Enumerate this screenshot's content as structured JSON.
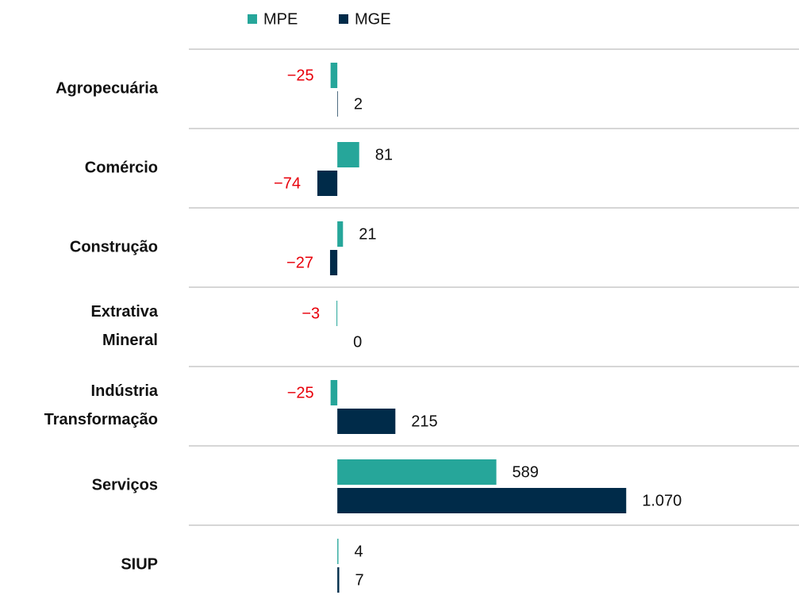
{
  "chart_data": {
    "type": "barh",
    "categories": [
      "Agropecuária",
      "Comércio",
      "Construção",
      "Extrativa Mineral",
      "Indústria Transformação",
      "Serviços",
      "SIUP"
    ],
    "series": [
      {
        "name": "MPE",
        "color": "#26a69a",
        "values": [
          -25,
          81,
          21,
          -3,
          -25,
          589,
          4
        ],
        "value_labels": [
          "−25",
          "81",
          "21",
          "−3",
          "−25",
          "589",
          "4"
        ]
      },
      {
        "name": "MGE",
        "color": "#002b49",
        "values": [
          2,
          -74,
          -27,
          0,
          215,
          1070,
          7
        ],
        "value_labels": [
          "2",
          "−74",
          "−27",
          "0",
          "215",
          "1.070",
          "7"
        ]
      }
    ],
    "xlim": [
      -550,
      1710
    ],
    "negative_label_color": "#e8000b",
    "legend": "top"
  }
}
